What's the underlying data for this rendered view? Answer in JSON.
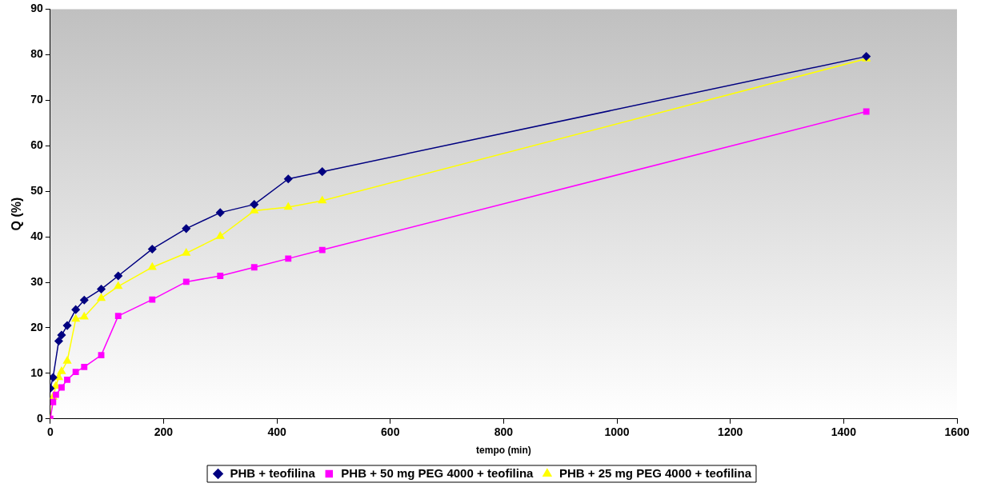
{
  "chart_data": {
    "type": "line",
    "xlabel": "tempo (min)",
    "ylabel": "Q (%)",
    "xlim": [
      0,
      1600
    ],
    "xticks": [
      0,
      200,
      400,
      600,
      800,
      1000,
      1200,
      1400,
      1600
    ],
    "ylim": [
      0,
      90
    ],
    "yticks": [
      0,
      10,
      20,
      30,
      40,
      50,
      60,
      70,
      80,
      90
    ],
    "grid": false,
    "legend": "bottom",
    "line_style": "solid",
    "series": [
      {
        "name": "PHB + teofilina",
        "color": "#000080",
        "marker": "diamond",
        "x": [
          0,
          5,
          15,
          20,
          30,
          45,
          60,
          90,
          120,
          180,
          240,
          300,
          360,
          420,
          480,
          1440
        ],
        "values": [
          6.7,
          9.1,
          17.1,
          18.4,
          20.5,
          24.0,
          26.1,
          28.5,
          31.4,
          37.3,
          41.8,
          45.3,
          47.1,
          52.7,
          54.3,
          79.6
        ]
      },
      {
        "name": "PHB + 50 mg PEG 4000 + teofilina",
        "color": "#ff00ff",
        "marker": "square",
        "x": [
          0,
          5,
          10,
          20,
          30,
          45,
          60,
          90,
          120,
          180,
          240,
          300,
          360,
          420,
          480,
          1440
        ],
        "values": [
          0,
          3.7,
          5.3,
          6.9,
          8.6,
          10.3,
          11.4,
          14.0,
          22.6,
          26.2,
          30.1,
          31.4,
          33.3,
          35.2,
          37.1,
          67.5
        ]
      },
      {
        "name": "PHB + 25 mg PEG 4000 + teofilina",
        "color": "#ffff00",
        "marker": "triangle",
        "x": [
          0,
          5,
          10,
          15,
          20,
          30,
          45,
          60,
          90,
          120,
          180,
          240,
          300,
          360,
          420,
          480,
          1440
        ],
        "values": [
          0,
          4.8,
          7.2,
          9.1,
          10.4,
          12.7,
          21.9,
          22.4,
          26.5,
          29.1,
          33.3,
          36.4,
          40.1,
          45.7,
          46.5,
          47.9,
          79.1
        ]
      }
    ]
  }
}
